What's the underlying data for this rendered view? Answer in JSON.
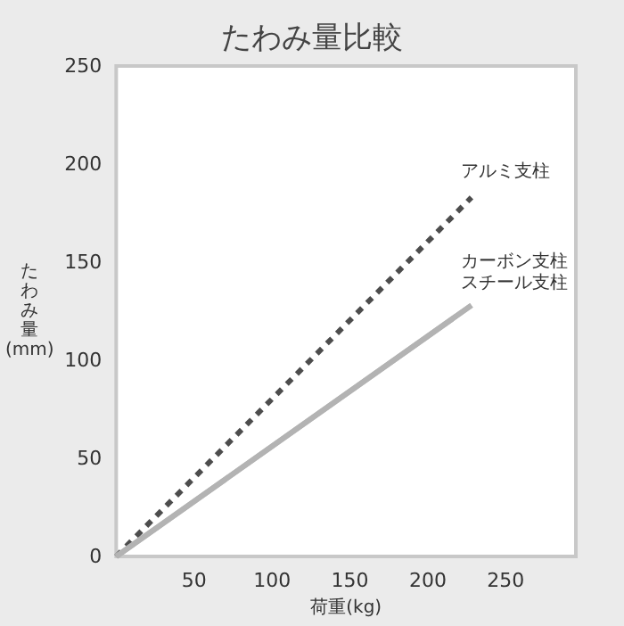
{
  "chart_data": {
    "type": "line",
    "title": "たわみ量比較",
    "xlabel": "荷重(kg)",
    "ylabel": "たわみ量(mm)",
    "x": [
      0,
      228
    ],
    "series": [
      {
        "name": "アルミ支柱",
        "color": "#4d4d4d",
        "values": [
          0,
          183
        ],
        "line_style": "dashed"
      },
      {
        "name": "カーボン支柱",
        "color": "#b3b3b3",
        "values": [
          0,
          128
        ],
        "line_style": "solid"
      },
      {
        "name": "スチール支柱",
        "color": "#b3b3b3",
        "values": [
          0,
          128
        ],
        "line_style": "solid"
      }
    ],
    "xlim": [
      0,
      295
    ],
    "xticks": [
      50,
      100,
      150,
      200,
      250
    ],
    "ylim": [
      0,
      250
    ],
    "yticks": [
      0,
      50,
      100,
      150,
      200,
      250
    ],
    "grid": false,
    "legend": false,
    "marker": "none"
  }
}
